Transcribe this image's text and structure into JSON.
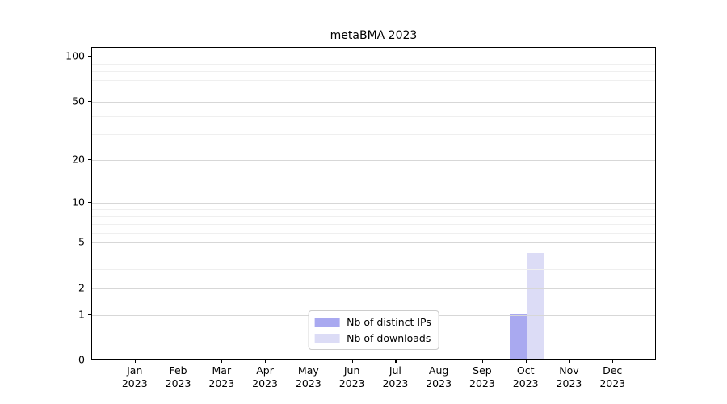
{
  "chart_data": {
    "type": "bar",
    "title": "metaBMA 2023",
    "categories": [
      {
        "month": "Jan",
        "year": "2023"
      },
      {
        "month": "Feb",
        "year": "2023"
      },
      {
        "month": "Mar",
        "year": "2023"
      },
      {
        "month": "Apr",
        "year": "2023"
      },
      {
        "month": "May",
        "year": "2023"
      },
      {
        "month": "Jun",
        "year": "2023"
      },
      {
        "month": "Jul",
        "year": "2023"
      },
      {
        "month": "Aug",
        "year": "2023"
      },
      {
        "month": "Sep",
        "year": "2023"
      },
      {
        "month": "Oct",
        "year": "2023"
      },
      {
        "month": "Nov",
        "year": "2023"
      },
      {
        "month": "Dec",
        "year": "2023"
      }
    ],
    "series": [
      {
        "name": "Nb of distinct IPs",
        "color": "#a9a9f0",
        "values": [
          0,
          0,
          0,
          0,
          0,
          0,
          0,
          0,
          0,
          1,
          0,
          0
        ]
      },
      {
        "name": "Nb of downloads",
        "color": "#dcdcf6",
        "values": [
          0,
          0,
          0,
          0,
          0,
          0,
          0,
          0,
          0,
          4,
          0,
          0
        ]
      }
    ],
    "yscale": "log1p",
    "ylim": [
      0,
      115
    ],
    "yticks": [
      0,
      1,
      2,
      5,
      10,
      20,
      50,
      100
    ],
    "minor_grid_values": [
      3,
      4,
      6,
      7,
      8,
      9,
      30,
      40,
      60,
      70,
      80,
      90
    ],
    "xlabel": "",
    "ylabel": "",
    "grid": "horizontal",
    "legend_position": "lower center"
  }
}
